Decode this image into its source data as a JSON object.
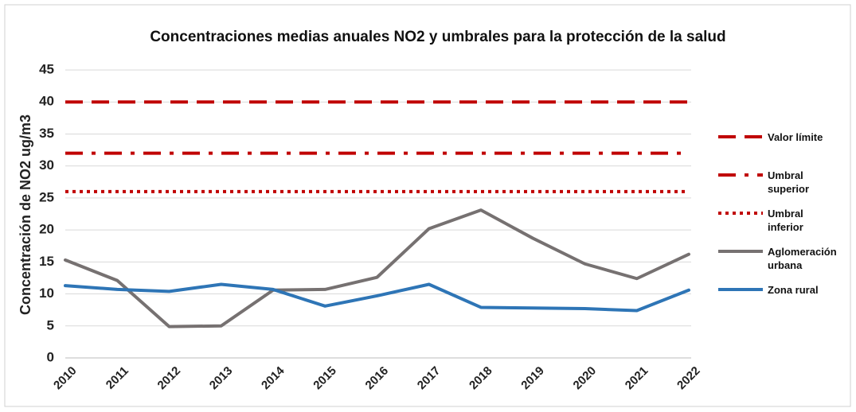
{
  "chart_data": {
    "type": "line",
    "title": "Concentraciones medias anuales NO2  y umbrales para la protección de la salud",
    "y_label": "Concentración de  NO2 ug/m3",
    "categories": [
      "2010",
      "2011",
      "2012",
      "2013",
      "2014",
      "2015",
      "2016",
      "2017",
      "2018",
      "2019",
      "2020",
      "2021",
      "2022"
    ],
    "series": [
      {
        "name": "Valor límite",
        "color": "#c00000",
        "style": "dash",
        "values": [
          40,
          40,
          40,
          40,
          40,
          40,
          40,
          40,
          40,
          40,
          40,
          40,
          40
        ]
      },
      {
        "name": "Umbral superior",
        "color": "#c00000",
        "style": "dashdot",
        "values": [
          32,
          32,
          32,
          32,
          32,
          32,
          32,
          32,
          32,
          32,
          32,
          32,
          32
        ]
      },
      {
        "name": "Umbral inferior",
        "color": "#c00000",
        "style": "dot",
        "values": [
          26,
          26,
          26,
          26,
          26,
          26,
          26,
          26,
          26,
          26,
          26,
          26,
          26
        ]
      },
      {
        "name": "Aglomeración urbana",
        "color": "#767171",
        "style": "solid",
        "values": [
          15.3,
          12.1,
          4.9,
          5.0,
          10.6,
          10.7,
          12.6,
          20.2,
          23.1,
          18.7,
          14.7,
          12.4,
          16.2
        ]
      },
      {
        "name": "Zona rural",
        "color": "#2e75b6",
        "style": "solid",
        "values": [
          11.3,
          10.7,
          10.4,
          11.5,
          10.7,
          8.1,
          9.7,
          11.5,
          7.9,
          7.8,
          7.7,
          7.4,
          10.6
        ]
      }
    ],
    "ylim": [
      0,
      45
    ],
    "yticks": [
      0,
      5,
      10,
      15,
      20,
      25,
      30,
      35,
      40,
      45
    ],
    "grid": true,
    "legend": "right"
  }
}
